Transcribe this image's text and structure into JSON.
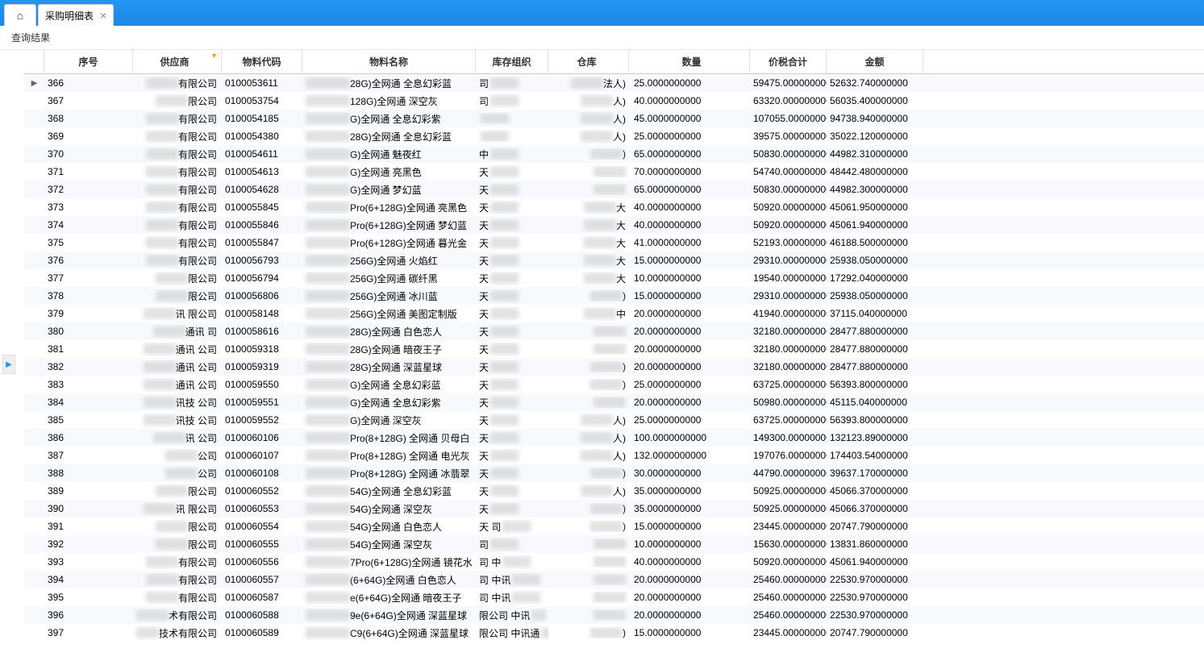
{
  "topbar": {
    "home_icon": "⌂",
    "tab_title": "采购明细表",
    "tab_close": "×"
  },
  "subheader": {
    "label": "查询结果"
  },
  "expand_handle": "▶",
  "columns": {
    "seq": "序号",
    "supplier": "供应商",
    "material_code": "物料代码",
    "material_name": "物料名称",
    "inventory_org": "库存组织",
    "warehouse": "仓库",
    "qty": "数量",
    "price_tax_total": "价税合计",
    "amount": "金额"
  },
  "rows": [
    {
      "indicator": "▶",
      "seq": "366",
      "sup": "有限公司",
      "code": "0100053611",
      "name": "28G)全网通 全息幻彩蓝",
      "inv": "司",
      "wh": "法人)",
      "qty": "25.0000000000",
      "tax": "59475.000000000",
      "amt": "52632.740000000"
    },
    {
      "indicator": "",
      "seq": "367",
      "sup": "限公司",
      "code": "0100053754",
      "name": "128G)全网通 深空灰",
      "inv": "司",
      "wh": "人)",
      "qty": "40.0000000000",
      "tax": "63320.000000000",
      "amt": "56035.400000000"
    },
    {
      "indicator": "",
      "seq": "368",
      "sup": "有限公司",
      "code": "0100054185",
      "name": "G)全网通 全息幻彩紫",
      "inv": "",
      "wh": "人)",
      "qty": "45.0000000000",
      "tax": "107055.00000000",
      "amt": "94738.940000000"
    },
    {
      "indicator": "",
      "seq": "369",
      "sup": "有限公司",
      "code": "0100054380",
      "name": "28G)全网通 全息幻彩蓝",
      "inv": "",
      "wh": "人)",
      "qty": "25.0000000000",
      "tax": "39575.000000000",
      "amt": "35022.120000000"
    },
    {
      "indicator": "",
      "seq": "370",
      "sup": "有限公司",
      "code": "0100054611",
      "name": "G)全网通 魅夜红",
      "inv": "中",
      "wh": ")",
      "qty": "65.0000000000",
      "tax": "50830.000000000",
      "amt": "44982.310000000"
    },
    {
      "indicator": "",
      "seq": "371",
      "sup": "有限公司",
      "code": "0100054613",
      "name": "G)全网通 亮黑色",
      "inv": "天",
      "wh": "",
      "qty": "70.0000000000",
      "tax": "54740.000000000",
      "amt": "48442.480000000"
    },
    {
      "indicator": "",
      "seq": "372",
      "sup": "有限公司",
      "code": "0100054628",
      "name": "G)全网通 梦幻蓝",
      "inv": "天",
      "wh": "",
      "qty": "65.0000000000",
      "tax": "50830.000000000",
      "amt": "44982.300000000"
    },
    {
      "indicator": "",
      "seq": "373",
      "sup": "有限公司",
      "code": "0100055845",
      "name": "Pro(6+128G)全网通 亮黑色",
      "inv": "天",
      "wh": "大",
      "qty": "40.0000000000",
      "tax": "50920.000000000",
      "amt": "45061.950000000"
    },
    {
      "indicator": "",
      "seq": "374",
      "sup": "有限公司",
      "code": "0100055846",
      "name": "Pro(6+128G)全网通 梦幻蓝",
      "inv": "天",
      "wh": "大",
      "qty": "40.0000000000",
      "tax": "50920.000000000",
      "amt": "45061.940000000"
    },
    {
      "indicator": "",
      "seq": "375",
      "sup": "有限公司",
      "code": "0100055847",
      "name": "Pro(6+128G)全网通 暮光金",
      "inv": "天",
      "wh": "大",
      "qty": "41.0000000000",
      "tax": "52193.000000000",
      "amt": "46188.500000000"
    },
    {
      "indicator": "",
      "seq": "376",
      "sup": "有限公司",
      "code": "0100056793",
      "name": "256G)全网通 火焰红",
      "inv": "天",
      "wh": "大",
      "qty": "15.0000000000",
      "tax": "29310.000000000",
      "amt": "25938.050000000"
    },
    {
      "indicator": "",
      "seq": "377",
      "sup": "限公司",
      "code": "0100056794",
      "name": "256G)全网通 碳纤黑",
      "inv": "天",
      "wh": "大",
      "qty": "10.0000000000",
      "tax": "19540.000000000",
      "amt": "17292.040000000"
    },
    {
      "indicator": "",
      "seq": "378",
      "sup": "限公司",
      "code": "0100056806",
      "name": "256G)全网通 冰川蓝",
      "inv": "天",
      "wh": ")",
      "qty": "15.0000000000",
      "tax": "29310.000000000",
      "amt": "25938.050000000"
    },
    {
      "indicator": "",
      "seq": "379",
      "sup": "讯    限公司",
      "code": "0100058148",
      "name": "256G)全网通 美图定制版",
      "inv": "天",
      "wh": "中",
      "qty": "20.0000000000",
      "tax": "41940.000000000",
      "amt": "37115.040000000"
    },
    {
      "indicator": "",
      "seq": "380",
      "sup": "通讯    司",
      "code": "0100058616",
      "name": "28G)全网通 白色恋人",
      "inv": "天",
      "wh": "",
      "qty": "20.0000000000",
      "tax": "32180.000000000",
      "amt": "28477.880000000"
    },
    {
      "indicator": "",
      "seq": "381",
      "sup": "通讯    公司",
      "code": "0100059318",
      "name": "28G)全网通 暗夜王子",
      "inv": "天",
      "wh": "",
      "qty": "20.0000000000",
      "tax": "32180.000000000",
      "amt": "28477.880000000"
    },
    {
      "indicator": "",
      "seq": "382",
      "sup": "通讯    公司",
      "code": "0100059319",
      "name": "28G)全网通 深蓝星球",
      "inv": "天",
      "wh": ")",
      "qty": "20.0000000000",
      "tax": "32180.000000000",
      "amt": "28477.880000000"
    },
    {
      "indicator": "",
      "seq": "383",
      "sup": "通讯    公司",
      "code": "0100059550",
      "name": "G)全网通 全息幻彩蓝",
      "inv": "天",
      "wh": ")",
      "qty": "25.0000000000",
      "tax": "63725.000000000",
      "amt": "56393.800000000"
    },
    {
      "indicator": "",
      "seq": "384",
      "sup": "讯技    公司",
      "code": "0100059551",
      "name": "G)全网通 全息幻彩紫",
      "inv": "天",
      "wh": "",
      "qty": "20.0000000000",
      "tax": "50980.000000000",
      "amt": "45115.040000000"
    },
    {
      "indicator": "",
      "seq": "385",
      "sup": "讯技    公司",
      "code": "0100059552",
      "name": "G)全网通 深空灰",
      "inv": "天",
      "wh": "人)",
      "qty": "25.0000000000",
      "tax": "63725.000000000",
      "amt": "56393.800000000"
    },
    {
      "indicator": "",
      "seq": "386",
      "sup": "讯    公司",
      "code": "0100060106",
      "name": "Pro(8+128G) 全网通 贝母白",
      "inv": "天",
      "wh": "人)",
      "qty": "100.0000000000",
      "tax": "149300.00000000",
      "amt": "132123.89000000"
    },
    {
      "indicator": "",
      "seq": "387",
      "sup": "公司",
      "code": "0100060107",
      "name": "Pro(8+128G) 全网通 电光灰",
      "inv": "天",
      "wh": "人)",
      "qty": "132.0000000000",
      "tax": "197076.00000000",
      "amt": "174403.54000000"
    },
    {
      "indicator": "",
      "seq": "388",
      "sup": "公司",
      "code": "0100060108",
      "name": "Pro(8+128G) 全网通 冰翡翠",
      "inv": "天",
      "wh": ")",
      "qty": "30.0000000000",
      "tax": "44790.000000000",
      "amt": "39637.170000000"
    },
    {
      "indicator": "",
      "seq": "389",
      "sup": "限公司",
      "code": "0100060552",
      "name": "54G)全网通 全息幻彩蓝",
      "inv": "天",
      "wh": "人)",
      "qty": "35.0000000000",
      "tax": "50925.000000000",
      "amt": "45066.370000000"
    },
    {
      "indicator": "",
      "seq": "390",
      "sup": "讯    限公司",
      "code": "0100060553",
      "name": "54G)全网通 深空灰",
      "inv": "天",
      "wh": ")",
      "qty": "35.0000000000",
      "tax": "50925.000000000",
      "amt": "45066.370000000"
    },
    {
      "indicator": "",
      "seq": "391",
      "sup": "限公司",
      "code": "0100060554",
      "name": "54G)全网通 白色恋人",
      "inv": "天    司",
      "wh": ")",
      "qty": "15.0000000000",
      "tax": "23445.000000000",
      "amt": "20747.790000000"
    },
    {
      "indicator": "",
      "seq": "392",
      "sup": "限公司",
      "code": "0100060555",
      "name": "54G)全网通 深空灰",
      "inv": "司",
      "wh": "",
      "qty": "10.0000000000",
      "tax": "15630.000000000",
      "amt": "13831.860000000"
    },
    {
      "indicator": "",
      "seq": "393",
      "sup": "有限公司",
      "code": "0100060556",
      "name": "7Pro(6+128G)全网通 镜花水",
      "inv": "司 中",
      "wh": "",
      "qty": "40.0000000000",
      "tax": "50920.000000000",
      "amt": "45061.940000000"
    },
    {
      "indicator": "",
      "seq": "394",
      "sup": "有限公司",
      "code": "0100060557",
      "name": "(6+64G)全网通 白色恋人",
      "inv": "司 中讯",
      "wh": "",
      "qty": "20.0000000000",
      "tax": "25460.000000000",
      "amt": "22530.970000000"
    },
    {
      "indicator": "",
      "seq": "395",
      "sup": "有限公司",
      "code": "0100060587",
      "name": "e(6+64G)全网通 暗夜王子",
      "inv": "司 中讯",
      "wh": "",
      "qty": "20.0000000000",
      "tax": "25460.000000000",
      "amt": "22530.970000000"
    },
    {
      "indicator": "",
      "seq": "396",
      "sup": "术有限公司",
      "code": "0100060588",
      "name": "9e(6+64G)全网通 深蓝星球",
      "inv": "限公司 中讯",
      "wh": "",
      "qty": "20.0000000000",
      "tax": "25460.000000000",
      "amt": "22530.970000000"
    },
    {
      "indicator": "",
      "seq": "397",
      "sup": "技术有限公司",
      "code": "0100060589",
      "name": "C9(6+64G)全网通 深蓝星球",
      "inv": "限公司 中讯通",
      "wh": ")",
      "qty": "15.0000000000",
      "tax": "23445.000000000",
      "amt": "20747.790000000"
    }
  ]
}
